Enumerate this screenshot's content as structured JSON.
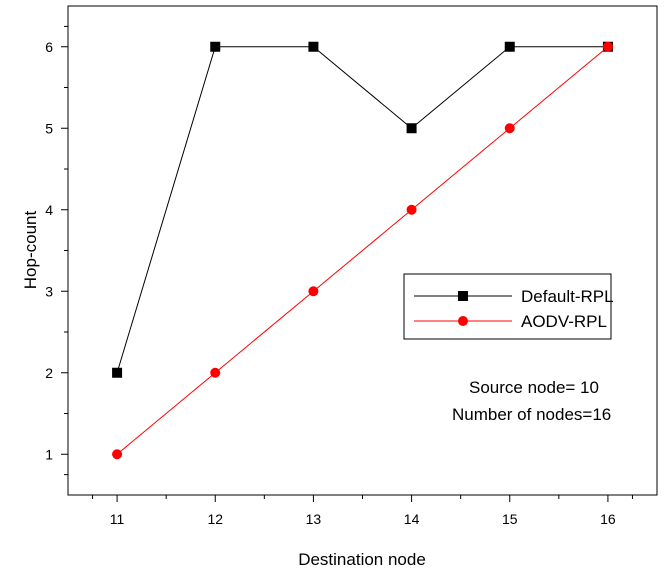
{
  "chart_data": {
    "type": "line",
    "xlabel": "Destination node",
    "ylabel": "Hop-count",
    "xlim": [
      10.5,
      16.5
    ],
    "ylim": [
      0.5,
      6.5
    ],
    "x": [
      11,
      12,
      13,
      14,
      15,
      16
    ],
    "xticks": [
      11,
      12,
      13,
      14,
      15,
      16
    ],
    "yticks": [
      1,
      2,
      3,
      4,
      5,
      6
    ],
    "grid": false,
    "legend_position": "right-middle",
    "series": [
      {
        "name": "Default-RPL",
        "values": [
          2,
          6,
          6,
          5,
          6,
          6
        ],
        "color": "#000000",
        "marker": "square"
      },
      {
        "name": "AODV-RPL",
        "values": [
          1,
          2,
          3,
          4,
          5,
          6
        ],
        "color": "#ff0000",
        "marker": "circle"
      }
    ],
    "annotations": [
      "Source node= 10",
      "Number of nodes=16"
    ]
  }
}
